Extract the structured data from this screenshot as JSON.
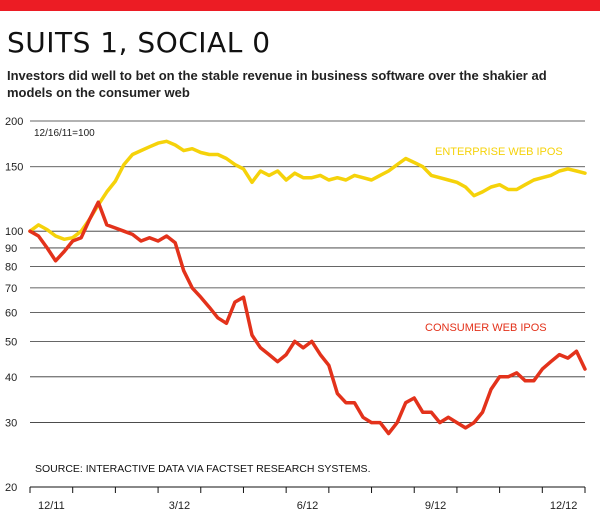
{
  "colors": {
    "accent": "#ec1c24",
    "enterprise": "#f5d20a",
    "consumer": "#e3321b",
    "grid": "#333333"
  },
  "header": {
    "title": "SUITS 1, SOCIAL 0",
    "subtitle": "Investors did well to bet on the stable revenue in business software over the shakier ad models on the consumer web"
  },
  "chart_data": {
    "type": "line",
    "title": "SUITS 1, SOCIAL 0",
    "ylabel": "12/16/11=100",
    "yscale": "log",
    "ylim": [
      20,
      200
    ],
    "yticks": [
      20,
      30,
      40,
      50,
      60,
      70,
      80,
      90,
      100,
      150,
      200
    ],
    "xlim": [
      0,
      13
    ],
    "xticks": [
      {
        "label": "12/11",
        "x": 0.5
      },
      {
        "label": "3/12",
        "x": 3.5
      },
      {
        "label": "6/12",
        "x": 6.5
      },
      {
        "label": "9/12",
        "x": 9.5
      },
      {
        "label": "12/12",
        "x": 12.5
      }
    ],
    "source": "SOURCE: INTERACTIVE DATA VIA FACTSET RESEARCH SYSTEMS.",
    "series": [
      {
        "name": "ENTERPRISE WEB IPOS",
        "color": "#f5d20a",
        "x": [
          0,
          0.2,
          0.4,
          0.6,
          0.8,
          1.0,
          1.2,
          1.4,
          1.6,
          1.8,
          2.0,
          2.2,
          2.4,
          2.6,
          2.8,
          3.0,
          3.2,
          3.4,
          3.6,
          3.8,
          4.0,
          4.2,
          4.4,
          4.6,
          4.8,
          5.0,
          5.2,
          5.4,
          5.6,
          5.8,
          6.0,
          6.2,
          6.4,
          6.6,
          6.8,
          7.0,
          7.2,
          7.4,
          7.6,
          7.8,
          8.0,
          8.2,
          8.4,
          8.6,
          8.8,
          9.0,
          9.2,
          9.4,
          9.6,
          9.8,
          10.0,
          10.2,
          10.4,
          10.6,
          10.8,
          11.0,
          11.2,
          11.4,
          11.6,
          11.8,
          12.0,
          12.2,
          12.4,
          12.6,
          12.8,
          13.0
        ],
        "y": [
          100,
          104,
          101,
          97,
          95,
          96,
          100,
          108,
          118,
          128,
          137,
          152,
          162,
          166,
          170,
          174,
          176,
          172,
          166,
          168,
          164,
          162,
          162,
          158,
          152,
          148,
          136,
          146,
          142,
          146,
          138,
          144,
          140,
          140,
          142,
          138,
          140,
          138,
          142,
          140,
          138,
          142,
          146,
          152,
          158,
          154,
          150,
          142,
          140,
          138,
          136,
          132,
          125,
          128,
          132,
          134,
          130,
          130,
          134,
          138,
          140,
          142,
          146,
          148,
          146,
          144
        ]
      },
      {
        "name": "CONSUMER WEB IPOS",
        "color": "#e3321b",
        "x": [
          0,
          0.2,
          0.4,
          0.6,
          0.8,
          1.0,
          1.2,
          1.4,
          1.6,
          1.8,
          2.0,
          2.2,
          2.4,
          2.6,
          2.8,
          3.0,
          3.2,
          3.4,
          3.6,
          3.8,
          4.0,
          4.2,
          4.4,
          4.6,
          4.8,
          5.0,
          5.2,
          5.4,
          5.6,
          5.8,
          6.0,
          6.2,
          6.4,
          6.6,
          6.8,
          7.0,
          7.2,
          7.4,
          7.6,
          7.8,
          8.0,
          8.2,
          8.4,
          8.6,
          8.8,
          9.0,
          9.2,
          9.4,
          9.6,
          9.8,
          10.0,
          10.2,
          10.4,
          10.6,
          10.8,
          11.0,
          11.2,
          11.4,
          11.6,
          11.8,
          12.0,
          12.2,
          12.4,
          12.6,
          12.8,
          13.0
        ],
        "y": [
          100,
          97,
          90,
          83,
          88,
          94,
          96,
          108,
          120,
          104,
          102,
          100,
          98,
          94,
          96,
          94,
          97,
          93,
          78,
          70,
          66,
          62,
          58,
          56,
          64,
          66,
          52,
          48,
          46,
          44,
          46,
          50,
          48,
          50,
          46,
          43,
          36,
          34,
          34,
          31,
          30,
          30,
          28,
          30,
          34,
          35,
          32,
          32,
          30,
          31,
          30,
          29,
          30,
          32,
          37,
          40,
          40,
          41,
          39,
          39,
          42,
          44,
          46,
          45,
          47,
          42
        ]
      }
    ]
  }
}
